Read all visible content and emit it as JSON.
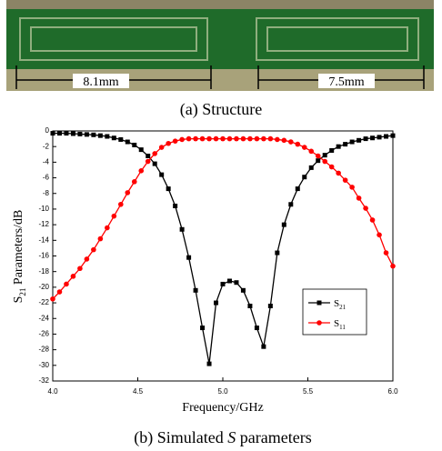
{
  "structure": {
    "dimensions": [
      "8.1mm",
      "7.5mm"
    ],
    "caption": "(a) Structure"
  },
  "chart_data": {
    "type": "line",
    "xlabel": "Frequency/GHz",
    "ylabel_parts": [
      "S",
      "21",
      " Parameters/dB"
    ],
    "caption_parts": [
      "(b) Simulated ",
      "S",
      " parameters"
    ],
    "x": [
      4.0,
      4.04,
      4.08,
      4.12,
      4.16,
      4.2,
      4.24,
      4.28,
      4.32,
      4.36,
      4.4,
      4.44,
      4.48,
      4.52,
      4.56,
      4.6,
      4.64,
      4.68,
      4.72,
      4.76,
      4.8,
      4.84,
      4.88,
      4.92,
      4.96,
      5.0,
      5.04,
      5.08,
      5.12,
      5.16,
      5.2,
      5.24,
      5.28,
      5.32,
      5.36,
      5.4,
      5.44,
      5.48,
      5.52,
      5.56,
      5.6,
      5.64,
      5.68,
      5.72,
      5.76,
      5.8,
      5.84,
      5.88,
      5.92,
      5.96,
      6.0
    ],
    "series": [
      {
        "name": "S21",
        "color": "#000000",
        "marker": "square",
        "values": [
          -0.3,
          -0.3,
          -0.3,
          -0.35,
          -0.4,
          -0.45,
          -0.5,
          -0.6,
          -0.7,
          -0.9,
          -1.1,
          -1.4,
          -1.8,
          -2.4,
          -3.2,
          -4.2,
          -5.6,
          -7.4,
          -9.6,
          -12.6,
          -16.2,
          -20.4,
          -25.2,
          -29.8,
          -22.0,
          -19.6,
          -19.2,
          -19.4,
          -20.4,
          -22.4,
          -25.2,
          -27.6,
          -22.4,
          -15.6,
          -12.0,
          -9.4,
          -7.4,
          -5.9,
          -4.7,
          -3.8,
          -3.1,
          -2.5,
          -2.0,
          -1.7,
          -1.4,
          -1.2,
          -1.0,
          -0.9,
          -0.8,
          -0.7,
          -0.6
        ]
      },
      {
        "name": "S11",
        "color": "#ff0000",
        "marker": "circle",
        "values": [
          -21.5,
          -20.6,
          -19.6,
          -18.6,
          -17.6,
          -16.4,
          -15.2,
          -13.8,
          -12.4,
          -10.9,
          -9.4,
          -7.9,
          -6.5,
          -5.1,
          -3.9,
          -2.9,
          -2.1,
          -1.6,
          -1.3,
          -1.1,
          -1.0,
          -1.0,
          -1.0,
          -1.0,
          -1.0,
          -1.0,
          -1.0,
          -1.0,
          -1.0,
          -1.0,
          -1.0,
          -1.0,
          -1.0,
          -1.1,
          -1.2,
          -1.4,
          -1.7,
          -2.1,
          -2.6,
          -3.2,
          -3.9,
          -4.6,
          -5.4,
          -6.3,
          -7.2,
          -8.6,
          -9.9,
          -11.4,
          -13.3,
          -15.6,
          -17.3
        ]
      }
    ],
    "xlim": [
      4.0,
      6.0
    ],
    "xticks": [
      {
        "value": 4.0,
        "label": "4.0"
      },
      {
        "value": 4.5,
        "label": "4.5"
      },
      {
        "value": 5.0,
        "label": "5.0"
      },
      {
        "value": 5.5,
        "label": "5.5"
      },
      {
        "value": 6.0,
        "label": "6.0"
      }
    ],
    "ylim": [
      -32,
      0
    ],
    "yticks": [
      0,
      -2,
      -4,
      -6,
      -8,
      -10,
      -12,
      -14,
      -16,
      -18,
      -20,
      -22,
      -24,
      -26,
      -28,
      -30,
      -32
    ],
    "legend": "lower right"
  }
}
